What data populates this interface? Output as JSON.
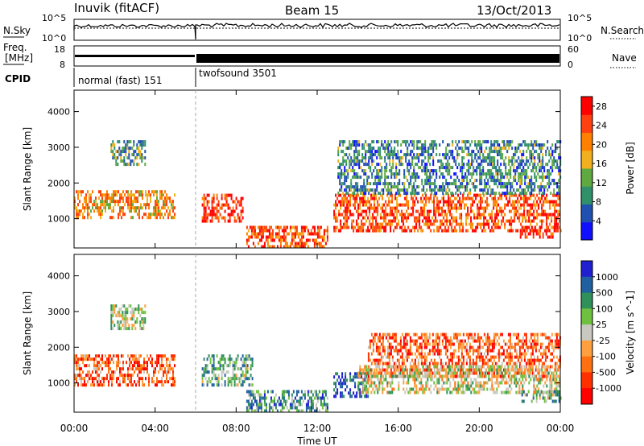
{
  "header": {
    "station": "Inuvik (fitACF)",
    "beam": "Beam 15",
    "date": "13/Oct/2013"
  },
  "panels": {
    "nsky_label": "N.Sky",
    "nsearch_label": "N.Search",
    "nsky_ticks": [
      "10^5",
      "10^0"
    ],
    "nsearch_ticks": [
      "10^5",
      "10^0"
    ],
    "freq_label_1": "Freq.",
    "freq_label_2": "[MHz]",
    "freq_ticks": [
      "18",
      "8"
    ],
    "nave_label": "Nave",
    "nave_ticks": [
      "60",
      "0"
    ],
    "cpid_label": "CPID",
    "cpid_modes": [
      "normal (fast) 151",
      "twofsound 3501"
    ]
  },
  "colors": {
    "power": [
      "#1010ff",
      "#2050b0",
      "#30906a",
      "#60a840",
      "#f0b020",
      "#ff8000",
      "#ff4010",
      "#ff0000"
    ],
    "velocity": [
      "#2020d0",
      "#2060a0",
      "#30905a",
      "#70c040",
      "#c8c8c0",
      "#ffa040",
      "#ff7010",
      "#ff3000",
      "#ff0000"
    ]
  },
  "chart_data": [
    {
      "type": "heatmap",
      "name": "power",
      "ylabel": "Slant Range [km]",
      "xlabel": "",
      "xlim": [
        0,
        24
      ],
      "ylim": [
        180,
        4600
      ],
      "xticks": [
        "00:00",
        "04:00",
        "08:00",
        "12:00",
        "16:00",
        "20:00",
        "00:00"
      ],
      "yticks": [
        "1000",
        "2000",
        "3000",
        "4000"
      ],
      "colorbar_label": "Power [dB]",
      "colorbar_ticks": [
        "4",
        "8",
        "12",
        "16",
        "20",
        "24",
        "28"
      ],
      "colorbar_range": [
        0,
        30
      ],
      "regions": [
        {
          "t0": 0.0,
          "t1": 5.0,
          "r0": 1000,
          "r1": 1800,
          "level": 0.65
        },
        {
          "t0": 1.8,
          "t1": 3.5,
          "r0": 2500,
          "r1": 3200,
          "level": 0.35
        },
        {
          "t0": 6.3,
          "t1": 8.3,
          "r0": 900,
          "r1": 1700,
          "level": 0.85
        },
        {
          "t0": 8.5,
          "t1": 12.5,
          "r0": 250,
          "r1": 800,
          "level": 0.8
        },
        {
          "t0": 12.8,
          "t1": 24.0,
          "r0": 700,
          "r1": 1700,
          "level": 0.8
        },
        {
          "t0": 13.0,
          "t1": 24.0,
          "r0": 1700,
          "r1": 3200,
          "level": 0.3
        },
        {
          "t0": 22.0,
          "t1": 24.0,
          "r0": 450,
          "r1": 800,
          "level": 0.85
        }
      ]
    },
    {
      "type": "heatmap",
      "name": "velocity",
      "ylabel": "Slant Range [km]",
      "xlabel": "Time UT",
      "xlim": [
        0,
        24
      ],
      "ylim": [
        180,
        4600
      ],
      "xticks": [
        "00:00",
        "04:00",
        "08:00",
        "12:00",
        "16:00",
        "20:00",
        "00:00"
      ],
      "yticks": [
        "1000",
        "2000",
        "3000",
        "4000"
      ],
      "colorbar_label": "Velocity [m s^-1]",
      "colorbar_ticks": [
        "1000",
        "500",
        "100",
        "25",
        "-25",
        "-100",
        "-500",
        "-1000"
      ],
      "regions": [
        {
          "t0": 0.0,
          "t1": 5.0,
          "r0": 900,
          "r1": 1800,
          "level": 0.75
        },
        {
          "t0": 1.8,
          "t1": 3.5,
          "r0": 2500,
          "r1": 3200,
          "level": 0.45
        },
        {
          "t0": 6.3,
          "t1": 8.8,
          "r0": 900,
          "r1": 1800,
          "level": 0.35
        },
        {
          "t0": 8.5,
          "t1": 12.5,
          "r0": 250,
          "r1": 800,
          "level": 0.3
        },
        {
          "t0": 12.8,
          "t1": 14.5,
          "r0": 600,
          "r1": 1300,
          "level": 0.1
        },
        {
          "t0": 14.5,
          "t1": 24.0,
          "r0": 1200,
          "r1": 2400,
          "level": 0.75
        },
        {
          "t0": 14.0,
          "t1": 24.0,
          "r0": 700,
          "r1": 1500,
          "level": 0.5
        },
        {
          "t0": 22.0,
          "t1": 24.0,
          "r0": 450,
          "r1": 800,
          "level": 0.35
        }
      ]
    }
  ]
}
